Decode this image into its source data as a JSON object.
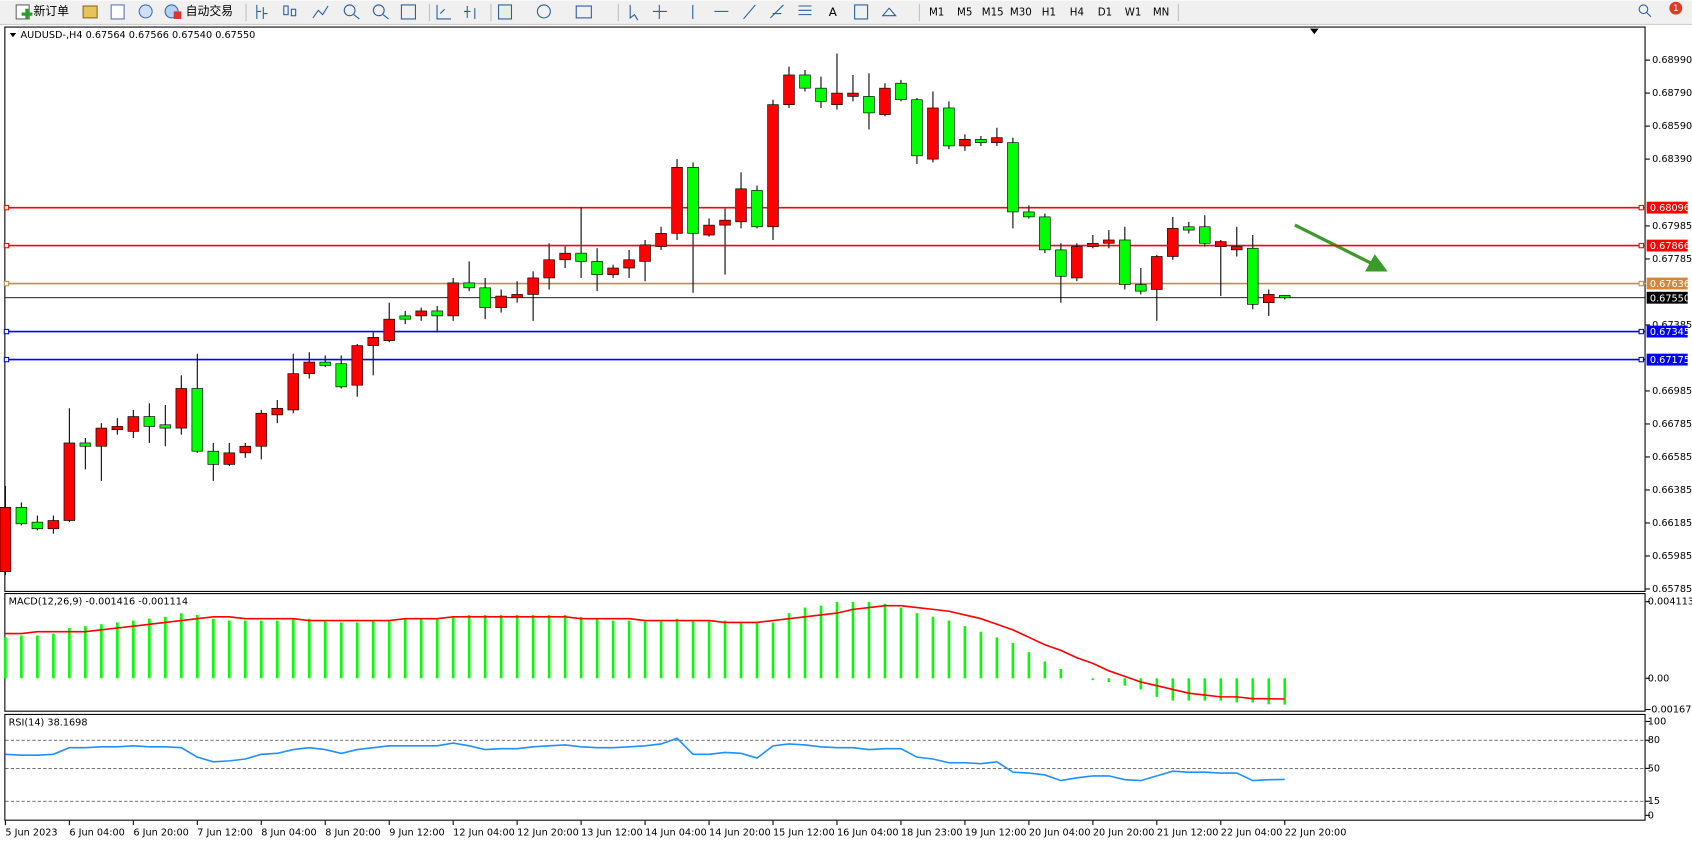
{
  "toolbar": {
    "new_order": "新订单",
    "auto_trade": "自动交易",
    "timeframes": [
      "M1",
      "M5",
      "M15",
      "M30",
      "H1",
      "H4",
      "D1",
      "W1",
      "MN"
    ],
    "notification": "1"
  },
  "chart_data": [
    {
      "type": "candlestick",
      "title": "AUDUSD-,H4  0.67564 0.67566 0.67540 0.67550",
      "categories": [
        "5 Jun 2023",
        null,
        null,
        null,
        "6 Jun 04:00",
        null,
        null,
        null,
        "6 Jun 20:00",
        null,
        null,
        null,
        "7 Jun 12:00",
        null,
        null,
        null,
        "8 Jun 04:00",
        null,
        null,
        null,
        "8 Jun 20:00",
        null,
        null,
        null,
        "9 Jun 12:00",
        null,
        null,
        null,
        "12 Jun 04:00",
        null,
        null,
        null,
        "12 Jun 20:00",
        null,
        null,
        null,
        "13 Jun 12:00",
        null,
        null,
        null,
        "14 Jun 04:00",
        null,
        null,
        null,
        "14 Jun 20:00",
        null,
        null,
        null,
        "15 Jun 12:00",
        null,
        null,
        null,
        "16 Jun 04:00",
        null,
        null,
        null,
        "18 Jun 23:00",
        null,
        null,
        null,
        "19 Jun 12:00",
        null,
        null,
        null,
        "20 Jun 04:00",
        null,
        null,
        null,
        "20 Jun 20:00",
        null,
        null,
        null,
        "21 Jun 12:00",
        null,
        null,
        null,
        "22 Jun 04:00",
        null,
        null,
        null,
        "22 Jun 20:00"
      ],
      "open": [
        0.6589,
        0.6628,
        0.6619,
        0.6615,
        0.662,
        0.6667,
        0.6665,
        0.6675,
        0.6674,
        0.6683,
        0.6678,
        0.6676,
        0.67,
        0.6662,
        0.6654,
        0.6661,
        0.6665,
        0.6684,
        0.6687,
        0.6709,
        0.6716,
        0.6715,
        0.6702,
        0.6726,
        0.6729,
        0.6744,
        0.6744,
        0.6747,
        0.6744,
        0.6764,
        0.6761,
        0.6749,
        0.6755,
        0.6757,
        0.6767,
        0.6778,
        0.6782,
        0.6777,
        0.6769,
        0.6773,
        0.6777,
        0.6786,
        0.6794,
        0.6834,
        0.6793,
        0.6799,
        0.6801,
        0.682,
        0.6798,
        0.6872,
        0.689,
        0.6882,
        0.6872,
        0.6877,
        0.6877,
        0.6866,
        0.6885,
        0.6875,
        0.6839,
        0.687,
        0.6847,
        0.6851,
        0.6849,
        0.6849,
        0.6807,
        0.6804,
        0.6784,
        0.6767,
        0.6786,
        0.6788,
        0.679,
        0.6763,
        0.676,
        0.678,
        0.6798,
        0.6798,
        0.6786,
        0.6784,
        0.6785,
        0.6752,
        0.67564
      ],
      "high": [
        0.6641,
        0.6631,
        0.6623,
        0.6623,
        0.6688,
        0.667,
        0.6679,
        0.6682,
        0.6687,
        0.6691,
        0.669,
        0.6708,
        0.6721,
        0.6667,
        0.6667,
        0.6667,
        0.6687,
        0.6693,
        0.6721,
        0.6722,
        0.672,
        0.672,
        0.6727,
        0.6734,
        0.6752,
        0.6747,
        0.6749,
        0.675,
        0.6767,
        0.6777,
        0.6767,
        0.676,
        0.6765,
        0.6771,
        0.6788,
        0.6786,
        0.681,
        0.6785,
        0.6775,
        0.6784,
        0.679,
        0.6798,
        0.6839,
        0.6837,
        0.6803,
        0.6809,
        0.6831,
        0.6823,
        0.6875,
        0.6895,
        0.6893,
        0.6889,
        0.6903,
        0.689,
        0.6891,
        0.6885,
        0.6887,
        0.6876,
        0.688,
        0.6874,
        0.6854,
        0.6853,
        0.6858,
        0.6852,
        0.6811,
        0.6806,
        0.6788,
        0.6788,
        0.6793,
        0.6796,
        0.6798,
        0.6773,
        0.6781,
        0.6804,
        0.6801,
        0.6805,
        0.679,
        0.6798,
        0.6793,
        0.676,
        0.67566
      ],
      "low": [
        0.6587,
        0.6617,
        0.6614,
        0.6612,
        0.6619,
        0.6651,
        0.6644,
        0.6672,
        0.667,
        0.6667,
        0.6665,
        0.6672,
        0.6661,
        0.6644,
        0.6653,
        0.6658,
        0.6657,
        0.6679,
        0.6685,
        0.6706,
        0.6713,
        0.67,
        0.6695,
        0.6708,
        0.6728,
        0.6739,
        0.6741,
        0.6734,
        0.6741,
        0.6759,
        0.6742,
        0.6746,
        0.6752,
        0.6741,
        0.676,
        0.6773,
        0.6767,
        0.6759,
        0.6767,
        0.6767,
        0.6765,
        0.6784,
        0.679,
        0.6758,
        0.6792,
        0.6769,
        0.6797,
        0.6797,
        0.679,
        0.687,
        0.688,
        0.687,
        0.6869,
        0.6874,
        0.6857,
        0.6865,
        0.6874,
        0.6836,
        0.6837,
        0.6845,
        0.6844,
        0.6847,
        0.6847,
        0.6797,
        0.6803,
        0.6782,
        0.6752,
        0.6765,
        0.6785,
        0.6785,
        0.676,
        0.6757,
        0.6741,
        0.6778,
        0.6794,
        0.6786,
        0.6756,
        0.678,
        0.6748,
        0.6744,
        0.6754
      ],
      "close": [
        0.6628,
        0.6618,
        0.6615,
        0.662,
        0.6667,
        0.6665,
        0.6676,
        0.6677,
        0.6683,
        0.6677,
        0.6676,
        0.67,
        0.6662,
        0.6654,
        0.6661,
        0.6665,
        0.6685,
        0.6688,
        0.6709,
        0.6716,
        0.6714,
        0.6701,
        0.6726,
        0.6731,
        0.6742,
        0.6742,
        0.6747,
        0.6744,
        0.6764,
        0.6761,
        0.6749,
        0.6756,
        0.6757,
        0.6767,
        0.6778,
        0.6782,
        0.6777,
        0.6769,
        0.6773,
        0.6778,
        0.6787,
        0.6794,
        0.6834,
        0.6794,
        0.6799,
        0.6802,
        0.6821,
        0.6798,
        0.6872,
        0.689,
        0.6882,
        0.6874,
        0.6879,
        0.6879,
        0.6867,
        0.6882,
        0.6875,
        0.6841,
        0.687,
        0.6847,
        0.6851,
        0.6849,
        0.6852,
        0.6807,
        0.6804,
        0.6784,
        0.6768,
        0.6786,
        0.6788,
        0.679,
        0.6763,
        0.6759,
        0.678,
        0.6797,
        0.6796,
        0.6788,
        0.6789,
        0.6786,
        0.6751,
        0.6757,
        0.6755
      ],
      "up_color": "#ff0000",
      "down_color": "#00ff00",
      "ylim": [
        0.65767,
        0.69187
      ],
      "yticks": [
        {
          "value": 0.6899,
          "label": "0.68990"
        },
        {
          "value": 0.6879,
          "label": "0.68790"
        },
        {
          "value": 0.6859,
          "label": "0.68590"
        },
        {
          "value": 0.6839,
          "label": "0.68390"
        },
        0.67985,
        0.67785,
        0.67385,
        0.66985,
        0.66785,
        0.66585,
        0.66385,
        0.66185,
        0.65985,
        0.65785
      ],
      "levels": [
        {
          "price": 0.68096,
          "color": "#ff0000"
        },
        {
          "price": 0.67866,
          "color": "#ff0000"
        },
        {
          "price": 0.67636,
          "color": "#d2883c"
        },
        {
          "price": {
            "value": 0.6755,
            "label": "0.67550"
          },
          "color": "#000000"
        },
        {
          "price": 0.67345,
          "color": "#0000ff"
        },
        {
          "price": 0.67175,
          "color": "#0000ff"
        }
      ]
    },
    {
      "type": "macd",
      "title": "MACD(12,26,9) -0.001416 -0.001114",
      "histogram": [
        0.0022,
        0.0023,
        0.0023,
        0.0024,
        0.0027,
        0.0028,
        0.0029,
        0.003,
        0.0031,
        0.0032,
        0.0033,
        0.0035,
        0.0034,
        0.0032,
        0.0031,
        0.0031,
        0.0031,
        0.0031,
        0.0032,
        0.0032,
        0.0031,
        0.003,
        0.003,
        0.0031,
        0.0031,
        0.0032,
        0.0032,
        0.0032,
        0.0033,
        0.0034,
        0.0034,
        0.0034,
        0.0034,
        0.0034,
        0.0034,
        0.0034,
        0.0033,
        0.0032,
        0.0031,
        0.0031,
        0.0031,
        0.0031,
        0.0032,
        0.0031,
        0.0031,
        0.0031,
        0.003,
        0.003,
        0.003,
        0.0035,
        0.0038,
        0.0039,
        0.0041,
        0.0041,
        0.0041,
        0.004,
        0.0038,
        0.0035,
        0.0033,
        0.0031,
        0.0028,
        0.0025,
        0.0022,
        0.0019,
        0.0014,
        0.0009,
        0.0005,
        0.0,
        -0.0001,
        -0.0002,
        -0.0004,
        -0.0006,
        -0.001,
        -0.0012,
        -0.0012,
        -0.0012,
        -0.0012,
        -0.0013,
        -0.0013,
        -0.0014,
        -0.001416
      ],
      "signal": [
        0.0024,
        0.0024,
        0.0025,
        0.0025,
        0.0025,
        0.0025,
        0.0026,
        0.0027,
        0.0028,
        0.0029,
        0.003,
        0.0031,
        0.0032,
        0.0033,
        0.0033,
        0.0032,
        0.0032,
        0.0032,
        0.0032,
        0.0031,
        0.0031,
        0.0031,
        0.0031,
        0.0031,
        0.0031,
        0.0032,
        0.0032,
        0.0032,
        0.0033,
        0.0033,
        0.0033,
        0.0033,
        0.0033,
        0.0033,
        0.0033,
        0.0033,
        0.0032,
        0.0032,
        0.0032,
        0.0032,
        0.0031,
        0.0031,
        0.0031,
        0.0031,
        0.0031,
        0.003,
        0.003,
        0.003,
        0.0031,
        0.0032,
        0.0033,
        0.0034,
        0.0035,
        0.0037,
        0.0038,
        0.0039,
        0.0039,
        0.0038,
        0.0037,
        0.0036,
        0.0034,
        0.0032,
        0.0029,
        0.0026,
        0.0022,
        0.0018,
        0.0015,
        0.0011,
        0.0008,
        0.0004,
        0.0001,
        -0.0002,
        -0.0004,
        -0.0006,
        -0.0008,
        -0.0009,
        -0.001,
        -0.001,
        -0.0011,
        -0.0011,
        -0.001114
      ],
      "histogram_color": "#00ff00",
      "signal_color": "#ff0000",
      "ylim": [
        -0.00174,
        0.00452
      ],
      "yticks": [
        0.004113,
        {
          "value": 0,
          "label": "0.00"
        },
        -0.001679
      ]
    },
    {
      "type": "line",
      "title": "RSI(14) 38.1698",
      "values": [
        65,
        64,
        64,
        65,
        72,
        72,
        73,
        73,
        74,
        73,
        73,
        72,
        62,
        57,
        58,
        60,
        65,
        66,
        70,
        72,
        70,
        66,
        70,
        72,
        74,
        74,
        74,
        74,
        77,
        74,
        70,
        71,
        71,
        73,
        74,
        75,
        73,
        72,
        72,
        73,
        74,
        76,
        82,
        65,
        65,
        67,
        66,
        61,
        74,
        76,
        75,
        73,
        72,
        72,
        70,
        71,
        71,
        62,
        60,
        56,
        56,
        55,
        57,
        46,
        45,
        43,
        37,
        40,
        42,
        42,
        38,
        37,
        42,
        47,
        46,
        46,
        45,
        45,
        37,
        38,
        38.1698
      ],
      "color": "#1e90ff",
      "ylim": [
        0,
        100
      ],
      "yticks": [
        100,
        80,
        50,
        15,
        0
      ]
    }
  ]
}
